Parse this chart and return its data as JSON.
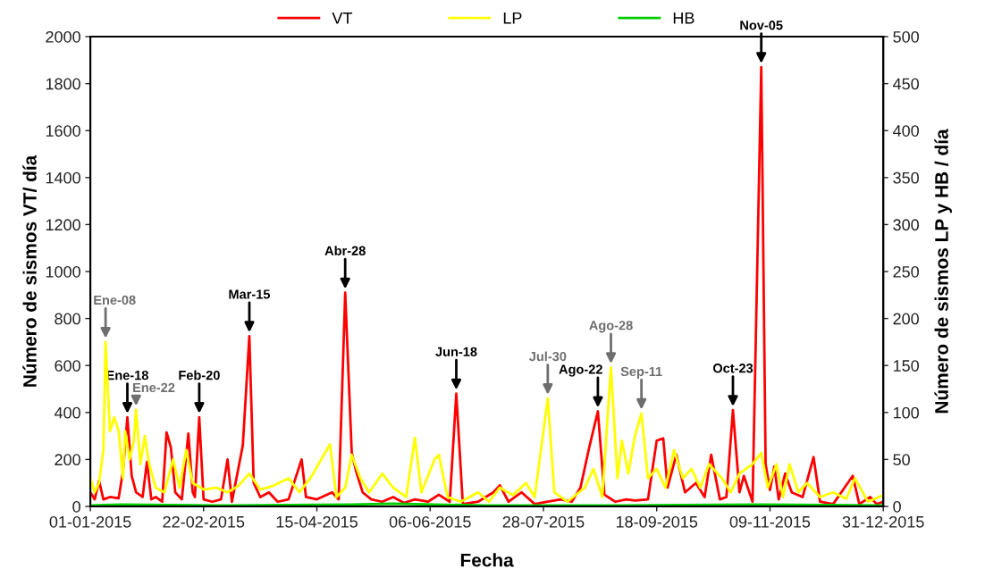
{
  "chart_data": {
    "type": "line",
    "xlabel": "Fecha",
    "ylabel": "Número de sismos VT/ día",
    "y2label": "Número de sismos LP y HB / día",
    "xlim": [
      "2015-01-01",
      "2015-12-31"
    ],
    "xticks": [
      {
        "value": "2015-01-01",
        "label": "01-01-2015"
      },
      {
        "value": "2015-02-22",
        "label": "22-02-2015"
      },
      {
        "value": "2015-04-15",
        "label": "15-04-2015"
      },
      {
        "value": "2015-06-06",
        "label": "06-06-2015"
      },
      {
        "value": "2015-07-28",
        "label": "28-07-2015"
      },
      {
        "value": "2015-09-18",
        "label": "18-09-2015"
      },
      {
        "value": "2015-11-09",
        "label": "09-11-2015"
      },
      {
        "value": "2015-12-31",
        "label": "31-12-2015"
      }
    ],
    "ylim": [
      0,
      2000
    ],
    "yticks": [
      0,
      200,
      400,
      600,
      800,
      1000,
      1200,
      1400,
      1600,
      1800,
      2000
    ],
    "y2lim": [
      0,
      500
    ],
    "y2ticks": [
      0,
      50,
      100,
      150,
      200,
      250,
      300,
      350,
      400,
      450,
      500
    ],
    "grid": false,
    "legend": "top",
    "marker": "none",
    "line_style": "solid",
    "series": [
      {
        "name": "VT",
        "color": "#ff0000",
        "x": [
          "2015-01-01",
          "2015-01-03",
          "2015-01-05",
          "2015-01-07",
          "2015-01-10",
          "2015-01-14",
          "2015-01-16",
          "2015-01-18",
          "2015-01-20",
          "2015-01-22",
          "2015-01-25",
          "2015-01-27",
          "2015-01-29",
          "2015-01-31",
          "2015-02-03",
          "2015-02-05",
          "2015-02-07",
          "2015-02-09",
          "2015-02-12",
          "2015-02-15",
          "2015-02-17",
          "2015-02-18",
          "2015-02-20",
          "2015-02-22",
          "2015-02-26",
          "2015-03-02",
          "2015-03-05",
          "2015-03-07",
          "2015-03-12",
          "2015-03-15",
          "2015-03-17",
          "2015-03-20",
          "2015-03-24",
          "2015-03-28",
          "2015-04-02",
          "2015-04-08",
          "2015-04-10",
          "2015-04-15",
          "2015-04-22",
          "2015-04-25",
          "2015-04-28",
          "2015-05-01",
          "2015-05-03",
          "2015-05-06",
          "2015-05-10",
          "2015-05-15",
          "2015-05-20",
          "2015-05-25",
          "2015-05-30",
          "2015-06-05",
          "2015-06-10",
          "2015-06-15",
          "2015-06-18",
          "2015-06-21",
          "2015-06-28",
          "2015-07-05",
          "2015-07-08",
          "2015-07-12",
          "2015-07-18",
          "2015-07-24",
          "2015-07-30",
          "2015-08-05",
          "2015-08-10",
          "2015-08-14",
          "2015-08-18",
          "2015-08-22",
          "2015-08-25",
          "2015-08-30",
          "2015-09-04",
          "2015-09-08",
          "2015-09-14",
          "2015-09-18",
          "2015-09-21",
          "2015-09-23",
          "2015-09-27",
          "2015-10-01",
          "2015-10-06",
          "2015-10-10",
          "2015-10-13",
          "2015-10-17",
          "2015-10-20",
          "2015-10-23",
          "2015-10-26",
          "2015-10-28",
          "2015-11-01",
          "2015-11-05",
          "2015-11-07",
          "2015-11-09",
          "2015-11-11",
          "2015-11-13",
          "2015-11-16",
          "2015-11-19",
          "2015-11-24",
          "2015-11-29",
          "2015-12-02",
          "2015-12-08",
          "2015-12-14",
          "2015-12-17",
          "2015-12-20",
          "2015-12-25",
          "2015-12-28",
          "2015-12-31"
        ],
        "values": [
          60,
          30,
          110,
          30,
          40,
          35,
          150,
          380,
          130,
          60,
          40,
          190,
          30,
          40,
          20,
          315,
          250,
          60,
          30,
          310,
          60,
          40,
          380,
          30,
          20,
          30,
          200,
          20,
          260,
          725,
          100,
          40,
          60,
          20,
          30,
          200,
          40,
          30,
          60,
          30,
          910,
          230,
          150,
          60,
          30,
          20,
          40,
          15,
          30,
          20,
          50,
          20,
          480,
          10,
          20,
          60,
          90,
          20,
          60,
          10,
          20,
          30,
          20,
          80,
          250,
          405,
          50,
          20,
          30,
          25,
          30,
          280,
          290,
          80,
          220,
          60,
          100,
          40,
          220,
          30,
          40,
          410,
          60,
          130,
          20,
          1870,
          180,
          70,
          170,
          30,
          140,
          60,
          40,
          210,
          20,
          10,
          90,
          130,
          10,
          40,
          10,
          20
        ]
      },
      {
        "name": "LP",
        "color": "#ffff00",
        "axis": "y2",
        "x": [
          "2015-01-01",
          "2015-01-03",
          "2015-01-05",
          "2015-01-07",
          "2015-01-08",
          "2015-01-10",
          "2015-01-12",
          "2015-01-14",
          "2015-01-16",
          "2015-01-17",
          "2015-01-19",
          "2015-01-21",
          "2015-01-22",
          "2015-01-24",
          "2015-01-26",
          "2015-01-28",
          "2015-01-31",
          "2015-02-04",
          "2015-02-08",
          "2015-02-11",
          "2015-02-14",
          "2015-02-17",
          "2015-02-22",
          "2015-02-28",
          "2015-03-05",
          "2015-03-10",
          "2015-03-15",
          "2015-03-20",
          "2015-03-26",
          "2015-04-02",
          "2015-04-07",
          "2015-04-12",
          "2015-04-21",
          "2015-04-24",
          "2015-04-28",
          "2015-05-01",
          "2015-05-05",
          "2015-05-09",
          "2015-05-15",
          "2015-05-20",
          "2015-05-26",
          "2015-05-30",
          "2015-06-02",
          "2015-06-08",
          "2015-06-10",
          "2015-06-14",
          "2015-06-20",
          "2015-06-28",
          "2015-07-03",
          "2015-07-08",
          "2015-07-14",
          "2015-07-20",
          "2015-07-24",
          "2015-07-30",
          "2015-08-02",
          "2015-08-08",
          "2015-08-16",
          "2015-08-20",
          "2015-08-24",
          "2015-08-28",
          "2015-08-31",
          "2015-09-02",
          "2015-09-05",
          "2015-09-08",
          "2015-09-11",
          "2015-09-14",
          "2015-09-18",
          "2015-09-22",
          "2015-09-26",
          "2015-09-30",
          "2015-10-04",
          "2015-10-08",
          "2015-10-12",
          "2015-10-18",
          "2015-10-22",
          "2015-10-26",
          "2015-11-01",
          "2015-11-05",
          "2015-11-08",
          "2015-11-12",
          "2015-11-15",
          "2015-11-18",
          "2015-11-22",
          "2015-11-26",
          "2015-12-02",
          "2015-12-08",
          "2015-12-14",
          "2015-12-18",
          "2015-12-24",
          "2015-12-31"
        ],
        "values": [
          30,
          15,
          25,
          60,
          175,
          80,
          95,
          80,
          30,
          80,
          50,
          70,
          103,
          45,
          75,
          45,
          20,
          15,
          50,
          20,
          60,
          25,
          18,
          20,
          15,
          22,
          35,
          18,
          22,
          30,
          15,
          30,
          66,
          10,
          20,
          55,
          30,
          15,
          35,
          20,
          10,
          73,
          15,
          50,
          55,
          10,
          5,
          15,
          5,
          20,
          12,
          25,
          10,
          115,
          15,
          5,
          20,
          40,
          10,
          148,
          30,
          70,
          35,
          75,
          99,
          30,
          40,
          20,
          60,
          30,
          40,
          20,
          45,
          30,
          15,
          35,
          45,
          57,
          20,
          45,
          10,
          45,
          15,
          25,
          10,
          15,
          8,
          30,
          5,
          12
        ]
      },
      {
        "name": "HB",
        "color": "#00cc00",
        "axis": "y2",
        "x": [
          "2015-01-01",
          "2015-01-15",
          "2015-03-01",
          "2015-05-01",
          "2015-05-20",
          "2015-07-01",
          "2015-09-01",
          "2015-11-05",
          "2015-12-31"
        ],
        "values": [
          1,
          2,
          1,
          2,
          3,
          1,
          1,
          2,
          1
        ]
      }
    ],
    "annotations": [
      {
        "text": "Ene-08",
        "x": "2015-01-08",
        "y": 700
      },
      {
        "text": "Ene-18",
        "x": "2015-01-18",
        "y": 380
      },
      {
        "text": "Ene-22",
        "x": "2015-01-22",
        "y": 412
      },
      {
        "text": "Feb-20",
        "x": "2015-02-20",
        "y": 380
      },
      {
        "text": "Mar-15",
        "x": "2015-03-15",
        "y": 725
      },
      {
        "text": "Abr-28",
        "x": "2015-04-28",
        "y": 910
      },
      {
        "text": "Jun-18",
        "x": "2015-06-18",
        "y": 480
      },
      {
        "text": "Jul-30",
        "x": "2015-07-30",
        "y": 460
      },
      {
        "text": "Ago-22",
        "x": "2015-08-22",
        "y": 405
      },
      {
        "text": "Ago-28",
        "x": "2015-08-28",
        "y": 592
      },
      {
        "text": "Sep-11",
        "x": "2015-09-11",
        "y": 396
      },
      {
        "text": "Oct-23",
        "x": "2015-10-23",
        "y": 410
      },
      {
        "text": "Nov-05",
        "x": "2015-11-05",
        "y": 1870
      }
    ]
  }
}
